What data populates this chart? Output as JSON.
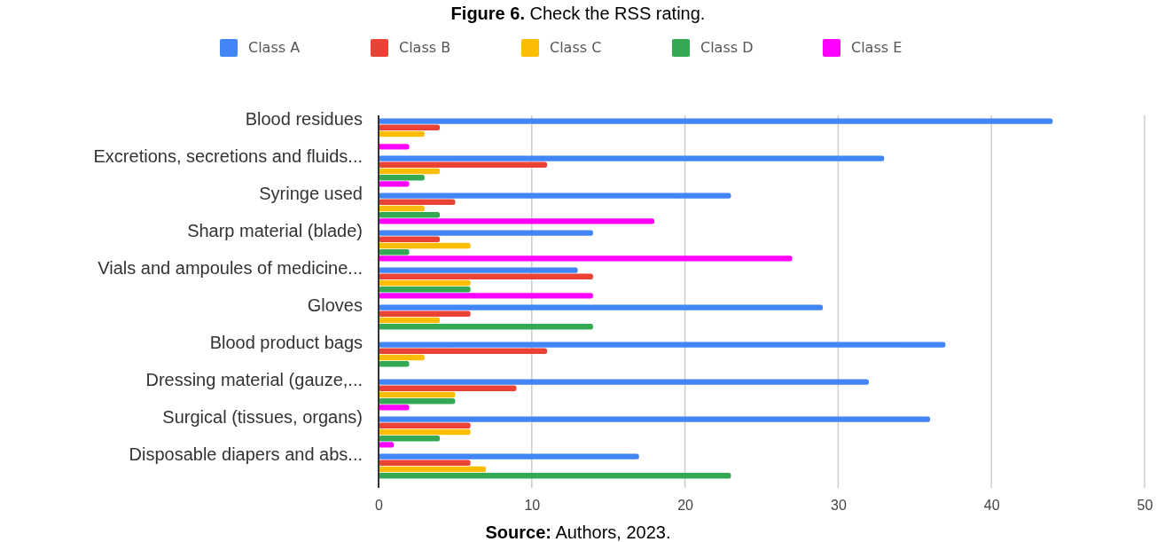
{
  "chart_data": {
    "type": "bar",
    "orientation": "horizontal",
    "title": "Figure 6. Check the RSS rating.",
    "annotations": [
      "Source: Authors, 2023."
    ],
    "categories": [
      "Blood residues",
      "Excretions, secretions and fluids...",
      "Syringe used",
      "Sharp material (blade)",
      "Vials and ampoules of medicine...",
      "Gloves",
      "Blood product bags",
      "Dressing material (gauze,...",
      "Surgical (tissues, organs)",
      "Disposable diapers and abs..."
    ],
    "series": [
      {
        "name": "Class A",
        "color": "#4285f4",
        "values": [
          44,
          33,
          23,
          14,
          13,
          29,
          37,
          32,
          36,
          17
        ]
      },
      {
        "name": "Class B",
        "color": "#ea4335",
        "values": [
          4,
          11,
          5,
          4,
          14,
          6,
          11,
          9,
          6,
          6
        ]
      },
      {
        "name": "Class C",
        "color": "#fbbc04",
        "values": [
          3,
          4,
          3,
          6,
          6,
          4,
          3,
          5,
          6,
          7
        ]
      },
      {
        "name": "Class D",
        "color": "#34a853",
        "values": [
          0,
          3,
          4,
          2,
          6,
          14,
          2,
          5,
          4,
          23
        ]
      },
      {
        "name": "Class E",
        "color": "#ff00ff",
        "values": [
          2,
          2,
          18,
          27,
          14,
          0,
          0,
          2,
          1,
          0
        ]
      }
    ],
    "xlim": [
      0,
      50
    ],
    "xticks": [
      0,
      10,
      20,
      30,
      40,
      50
    ],
    "grid": "x",
    "legend": "top"
  }
}
